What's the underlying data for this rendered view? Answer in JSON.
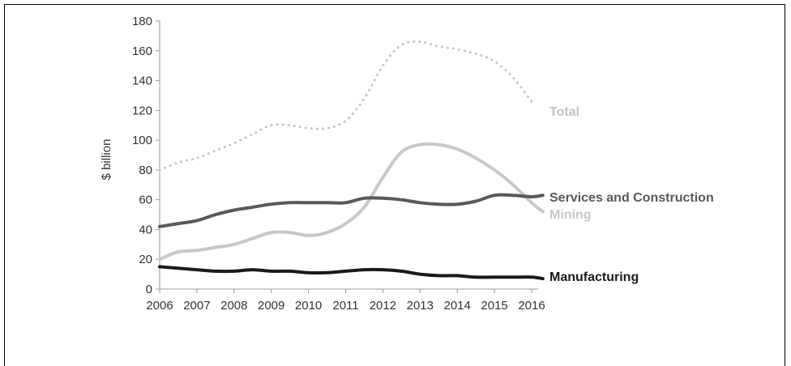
{
  "chart_data": {
    "type": "line",
    "title": "",
    "xlabel": "",
    "ylabel": "$ billion",
    "ylim": [
      0,
      180
    ],
    "yticks": [
      "0",
      "20",
      "40",
      "60",
      "80",
      "100",
      "120",
      "140",
      "160",
      "180"
    ],
    "categories": [
      "2006",
      "2007",
      "2008",
      "2009",
      "2010",
      "2011",
      "2012",
      "2013",
      "2014",
      "2015",
      "2016"
    ],
    "grid": false,
    "legend": "direct-labels-right",
    "series": [
      {
        "name": "Total",
        "style": "dotted",
        "color": "#c4c4c4",
        "x": [
          2006.0,
          2006.5,
          2007.0,
          2007.5,
          2008.0,
          2008.5,
          2009.0,
          2009.5,
          2010.0,
          2010.5,
          2011.0,
          2011.5,
          2012.0,
          2012.5,
          2013.0,
          2013.5,
          2014.0,
          2014.5,
          2015.0,
          2015.5,
          2016.0
        ],
        "values": [
          80,
          85,
          88,
          93,
          98,
          104,
          110,
          110,
          108,
          108,
          113,
          128,
          150,
          164,
          166,
          163,
          161,
          158,
          153,
          142,
          126
        ]
      },
      {
        "name": "Services and Construction",
        "style": "solid",
        "color": "#595959",
        "x": [
          2006.0,
          2006.5,
          2007.0,
          2007.5,
          2008.0,
          2008.5,
          2009.0,
          2009.5,
          2010.0,
          2010.5,
          2011.0,
          2011.5,
          2012.0,
          2012.5,
          2013.0,
          2013.5,
          2014.0,
          2014.5,
          2015.0,
          2015.5,
          2016.0,
          2016.3
        ],
        "values": [
          42,
          44,
          46,
          50,
          53,
          55,
          57,
          58,
          58,
          58,
          58,
          61,
          61,
          60,
          58,
          57,
          57,
          59,
          63,
          63,
          62,
          63
        ]
      },
      {
        "name": "Mining",
        "style": "solid",
        "color": "#c8c8c8",
        "x": [
          2006.0,
          2006.5,
          2007.0,
          2007.5,
          2008.0,
          2008.5,
          2009.0,
          2009.5,
          2010.0,
          2010.5,
          2011.0,
          2011.5,
          2012.0,
          2012.5,
          2013.0,
          2013.5,
          2014.0,
          2014.5,
          2015.0,
          2015.5,
          2016.0,
          2016.3
        ],
        "values": [
          20,
          25,
          26,
          28,
          30,
          34,
          38,
          38,
          36,
          38,
          44,
          55,
          75,
          92,
          97,
          97,
          94,
          88,
          80,
          70,
          58,
          52
        ]
      },
      {
        "name": "Manufacturing",
        "style": "solid",
        "color": "#1a1a1a",
        "x": [
          2006.0,
          2006.5,
          2007.0,
          2007.5,
          2008.0,
          2008.5,
          2009.0,
          2009.5,
          2010.0,
          2010.5,
          2011.0,
          2011.5,
          2012.0,
          2012.5,
          2013.0,
          2013.5,
          2014.0,
          2014.5,
          2015.0,
          2015.5,
          2016.0,
          2016.3
        ],
        "values": [
          15,
          14,
          13,
          12,
          12,
          13,
          12,
          12,
          11,
          11,
          12,
          13,
          13,
          12,
          10,
          9,
          9,
          8,
          8,
          8,
          8,
          7
        ]
      }
    ]
  }
}
